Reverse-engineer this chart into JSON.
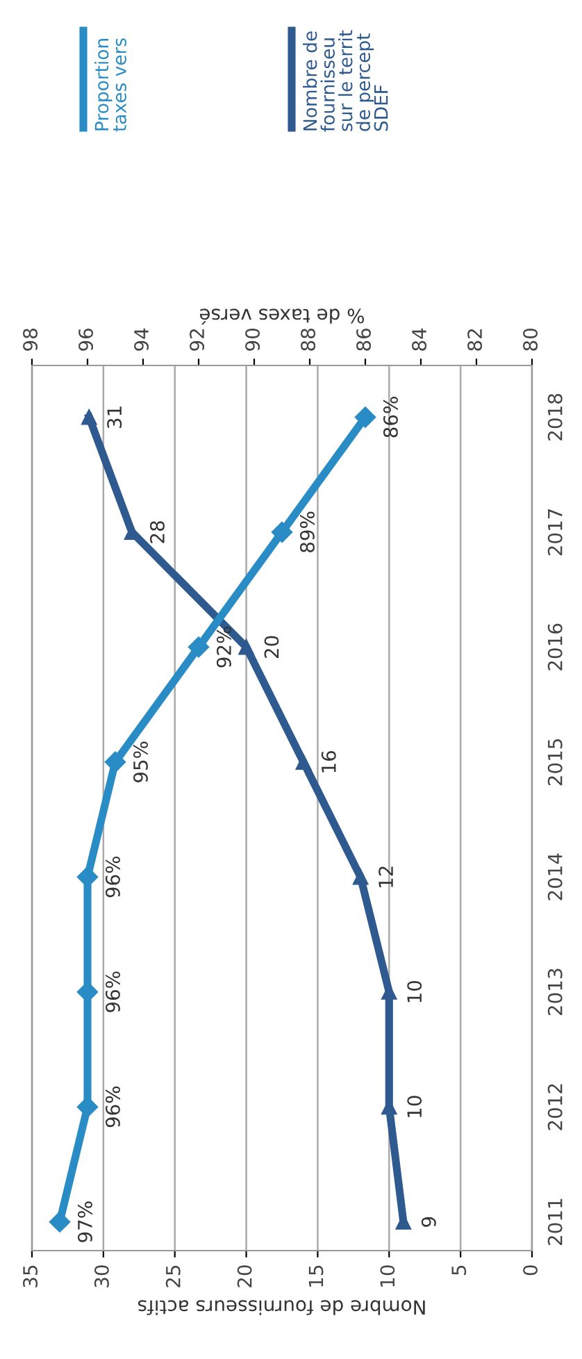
{
  "chart_data": {
    "type": "line",
    "orientation": "horizontal",
    "categories": [
      "2018",
      "2017",
      "2016",
      "2015",
      "2014",
      "2013",
      "2012",
      "2011"
    ],
    "xlabel": "Nombre de fournisseurs actifs",
    "x2label": "% de taxes versé",
    "xlim": [
      35,
      0
    ],
    "xticks": [
      35,
      30,
      25,
      20,
      15,
      10,
      5,
      0
    ],
    "x2lim": [
      98,
      80
    ],
    "x2ticks": [
      98,
      96,
      94,
      92,
      90,
      88,
      86,
      84,
      82,
      80
    ],
    "grid": "x",
    "legend": "top",
    "line_style": "solid",
    "series": [
      {
        "name": "Proportion\ntaxes vers",
        "color": "#2a8cc4",
        "axis": "x2",
        "marker": "diamond",
        "values": [
          86,
          89,
          92,
          95,
          96,
          96,
          96,
          97
        ],
        "value_labels": [
          "86%",
          "89%",
          "92%",
          "95%",
          "96%",
          "96%",
          "96%",
          "97%"
        ]
      },
      {
        "name": "Nombre de\nfournisseu\nsur le territ\nde percept\nSDEF",
        "color": "#2e5a8f",
        "marker": "triangle",
        "values": [
          31,
          28,
          20,
          16,
          12,
          10,
          10,
          9
        ],
        "value_labels": [
          "31",
          "28",
          "20",
          "16",
          "12",
          "10",
          "10",
          "9"
        ]
      }
    ]
  }
}
